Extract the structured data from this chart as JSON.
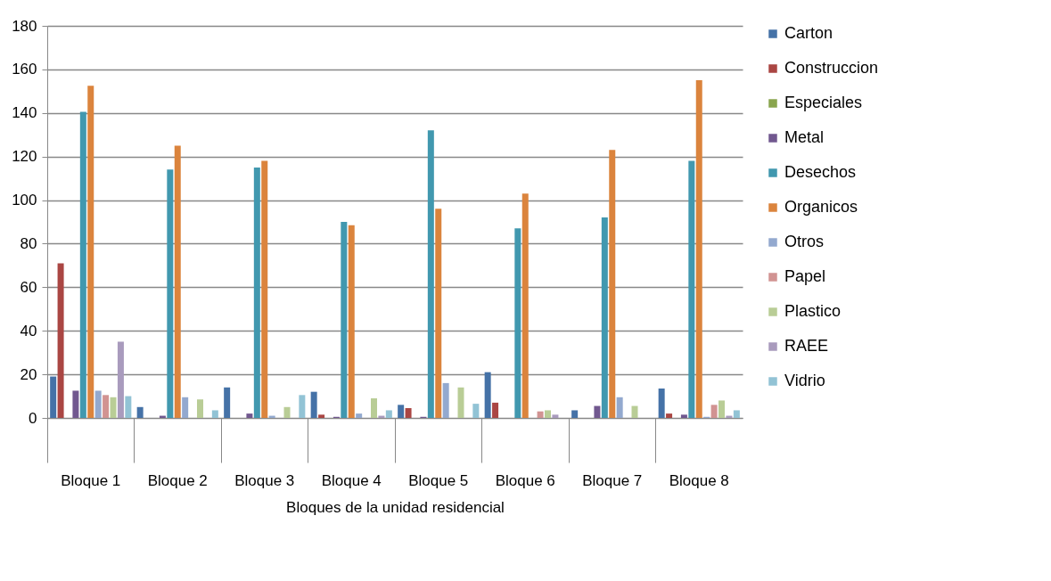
{
  "chart_data": {
    "type": "bar",
    "xlabel": "Bloques de la unidad residencial",
    "categories": [
      "Bloque 1",
      "Bloque 2",
      "Bloque 3",
      "Bloque 4",
      "Bloque 5",
      "Bloque 6",
      "Bloque 7",
      "Bloque 8"
    ],
    "series": [
      {
        "name": "Carton",
        "color": "#4572a7",
        "values": [
          19,
          5,
          14,
          12,
          6,
          21,
          3.5,
          13.5
        ]
      },
      {
        "name": "Construccion",
        "color": "#aa4643",
        "values": [
          71,
          0,
          0,
          1.5,
          4.5,
          7,
          0,
          2
        ]
      },
      {
        "name": "Especiales",
        "color": "#89a54e",
        "values": [
          0,
          0,
          0,
          0,
          0,
          0,
          0,
          0
        ]
      },
      {
        "name": "Metal",
        "color": "#71588f",
        "values": [
          12.5,
          1,
          2,
          0.5,
          0.5,
          0,
          5.5,
          1.5
        ]
      },
      {
        "name": "Desechos",
        "color": "#4198af",
        "values": [
          140.5,
          114,
          115,
          90,
          132,
          87,
          92,
          118
        ]
      },
      {
        "name": "Organicos",
        "color": "#db843d",
        "values": [
          152.5,
          125,
          118,
          88.5,
          96,
          103,
          123,
          155
        ]
      },
      {
        "name": "Otros",
        "color": "#93a9cf",
        "values": [
          12.5,
          9.5,
          1,
          2,
          16,
          0,
          9.5,
          0.5
        ]
      },
      {
        "name": "Papel",
        "color": "#d19392",
        "values": [
          10.5,
          0,
          0,
          0,
          0,
          3,
          0,
          6
        ]
      },
      {
        "name": "Plastico",
        "color": "#b9cd96",
        "values": [
          9.5,
          8.5,
          5,
          9,
          14,
          3.5,
          5.5,
          8
        ]
      },
      {
        "name": "RAEE",
        "color": "#a99bbd",
        "values": [
          35,
          0,
          0,
          1,
          0,
          1.5,
          0,
          1
        ]
      },
      {
        "name": "Vidrio",
        "color": "#92c3d5",
        "values": [
          10,
          3.5,
          10.5,
          3.5,
          6.5,
          0,
          0,
          3.5
        ]
      }
    ],
    "ylim": [
      0,
      180
    ],
    "yticks": [
      0,
      20,
      40,
      60,
      80,
      100,
      120,
      140,
      160,
      180
    ],
    "grid": "y",
    "legend": "right"
  }
}
